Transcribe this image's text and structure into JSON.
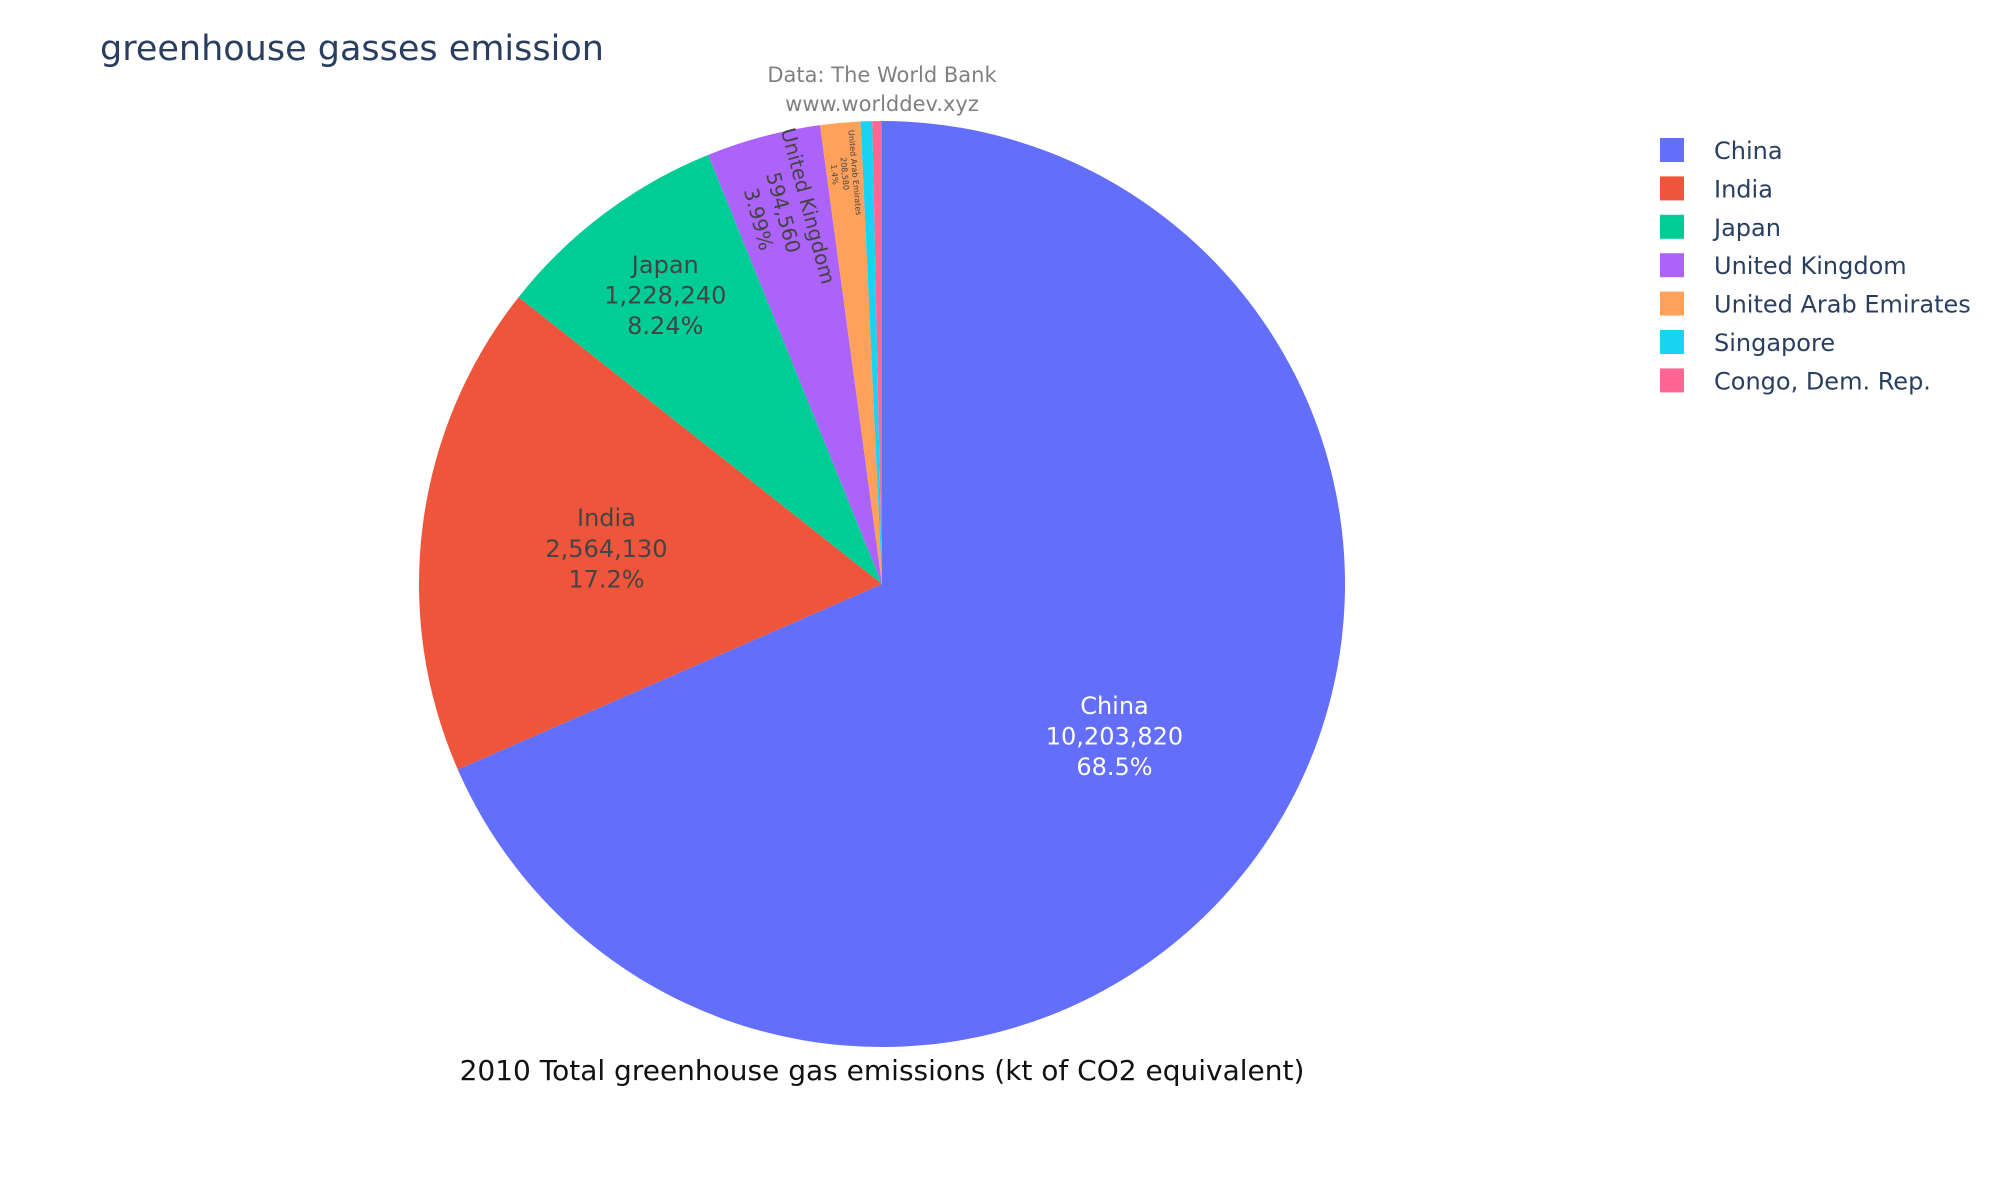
{
  "chart_data": {
    "type": "pie",
    "title": "greenhouse gasses emission",
    "annotation_lines": [
      "Data: The World Bank",
      "www.worlddev.xyz"
    ],
    "caption": "2010 Total greenhouse gas emissions (kt of CO2 equivalent)",
    "legend_position": "top-right",
    "slices": [
      {
        "label": "China",
        "value": 10203820,
        "value_text": "10,203,820",
        "percent_text": "68.5%",
        "color": "#636efa"
      },
      {
        "label": "India",
        "value": 2564130,
        "value_text": "2,564,130",
        "percent_text": "17.2%",
        "color": "#ef553b"
      },
      {
        "label": "Japan",
        "value": 1228240,
        "value_text": "1,228,240",
        "percent_text": "8.24%",
        "color": "#00cc96"
      },
      {
        "label": "United Kingdom",
        "value": 594560,
        "value_text": "594,560",
        "percent_text": "3.99%",
        "color": "#ab63fa"
      },
      {
        "label": "United Arab Emirates",
        "value": 208580,
        "value_text": "208,580",
        "percent_text": "1.4%",
        "color": "#ffa15a"
      },
      {
        "label": "Singapore",
        "value": 60000,
        "value_text": "",
        "percent_text": "",
        "color": "#19d3f3"
      },
      {
        "label": "Congo, Dem. Rep.",
        "value": 50000,
        "value_text": "",
        "percent_text": "",
        "color": "#ff6692"
      }
    ]
  }
}
